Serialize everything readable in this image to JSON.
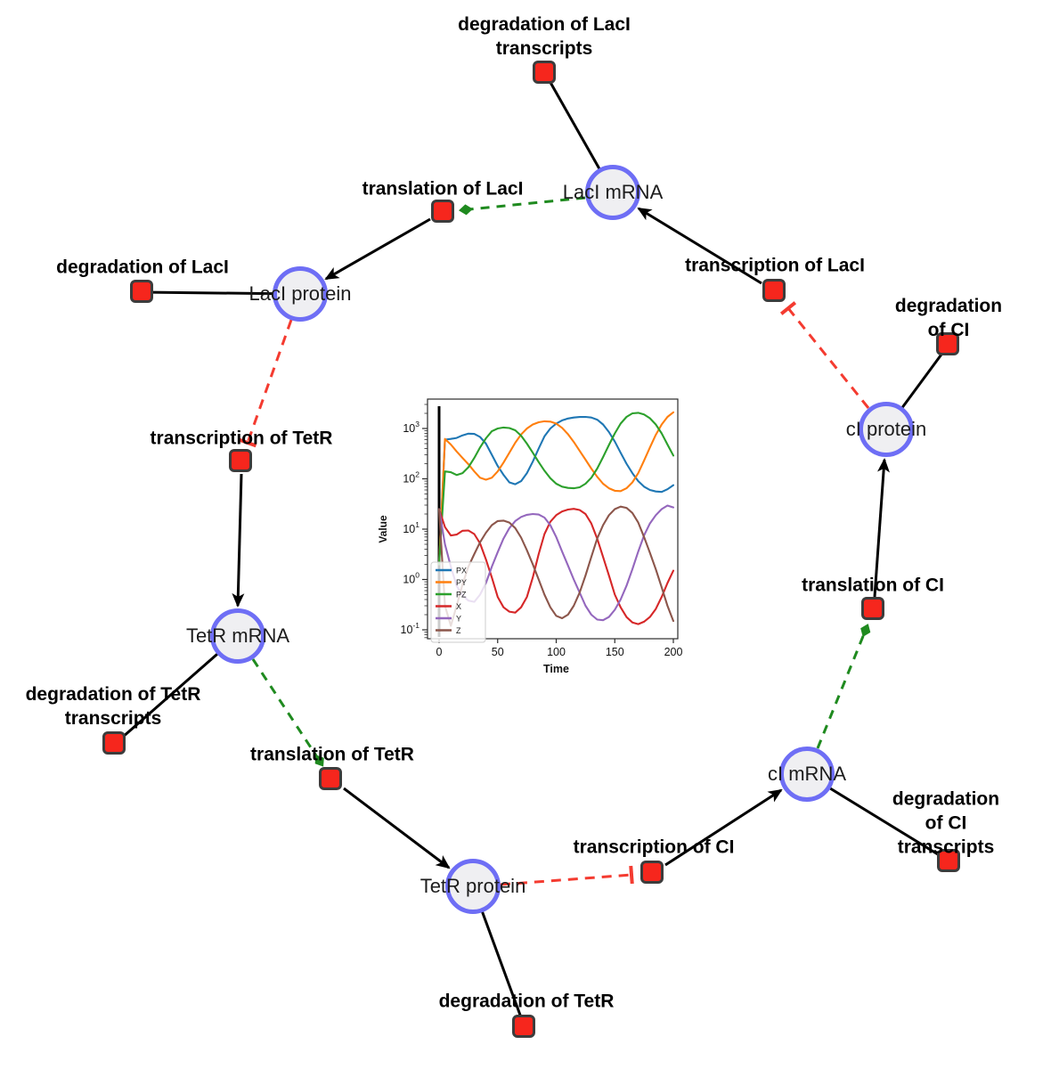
{
  "diagram": {
    "nodes": {
      "laci_mrna": "LacI mRNA",
      "laci_protein": "LacI protein",
      "tetr_mrna": "TetR mRNA",
      "tetr_protein": "TetR protein",
      "ci_mrna": "cI mRNA",
      "ci_protein": "cI protein"
    },
    "reactions": {
      "deg_laci_tx": "degradation of LacI\ntranscripts",
      "transl_laci": "translation of LacI",
      "deg_laci": "degradation of LacI",
      "txn_laci": "transcription of LacI",
      "deg_ci": "degradation of CI",
      "txn_tetr": "transcription of TetR",
      "deg_tetr_tx": "degradation of TetR\ntranscripts",
      "transl_tetr": "translation of TetR",
      "transl_ci": "translation of CI",
      "deg_tetr": "degradation of TetR",
      "txn_ci": "transcription of CI",
      "deg_ci_tx": "degradation of CI\ntranscripts"
    },
    "colors": {
      "species_fill": "#efeff2",
      "species_border": "#6e6ef5",
      "reaction_fill": "#f6261d",
      "reaction_border": "#3c3c3c",
      "edge_black": "#000000",
      "edge_modifier_green": "#1f8a1f",
      "edge_inhibition_red": "#f43b30"
    },
    "edge_kinds": {
      "black_solid": "production/consumption arrow",
      "green_dashed": "modifier (translation catalysis)",
      "red_dashed_tbar": "inhibition"
    }
  },
  "chart_data": {
    "type": "line",
    "title": "",
    "xlabel": "Time",
    "ylabel": "Value",
    "y_scale": "log",
    "xlim": [
      0,
      200
    ],
    "ylim_log10": [
      -1.18,
      3.58
    ],
    "x_ticks": [
      0,
      50,
      100,
      150,
      200
    ],
    "y_tick_exponents": [
      -1,
      0,
      1,
      2,
      3
    ],
    "grid": false,
    "legend_position": "lower left",
    "annotations": [
      {
        "type": "vline",
        "x": 0,
        "color": "#000000"
      }
    ],
    "x": [
      0,
      5,
      10,
      15,
      20,
      25,
      30,
      35,
      40,
      45,
      50,
      55,
      60,
      65,
      70,
      75,
      80,
      85,
      90,
      95,
      100,
      105,
      110,
      115,
      120,
      125,
      130,
      135,
      140,
      145,
      150,
      155,
      160,
      165,
      170,
      175,
      180,
      185,
      190,
      195,
      200
    ],
    "series": [
      {
        "name": "PX",
        "color": "#1f77b4",
        "values": [
          2,
          600,
          620,
          650,
          730,
          790,
          780,
          680,
          500,
          300,
          180,
          120,
          85,
          78,
          90,
          130,
          220,
          400,
          700,
          1000,
          1250,
          1450,
          1580,
          1650,
          1690,
          1700,
          1650,
          1500,
          1200,
          850,
          550,
          330,
          200,
          130,
          90,
          70,
          60,
          56,
          55,
          62,
          75
        ]
      },
      {
        "name": "PY",
        "color": "#ff7f0e",
        "values": [
          2,
          620,
          480,
          350,
          260,
          195,
          140,
          105,
          96,
          105,
          140,
          210,
          330,
          520,
          760,
          1000,
          1200,
          1330,
          1390,
          1370,
          1250,
          1030,
          770,
          540,
          360,
          240,
          160,
          110,
          80,
          65,
          58,
          57,
          65,
          85,
          130,
          230,
          420,
          750,
          1200,
          1700,
          2100
        ]
      },
      {
        "name": "PZ",
        "color": "#2ca02c",
        "values": [
          2,
          140,
          135,
          119,
          130,
          170,
          260,
          420,
          640,
          880,
          1000,
          1045,
          1020,
          920,
          720,
          500,
          330,
          215,
          145,
          103,
          80,
          70,
          66,
          65,
          68,
          80,
          105,
          160,
          270,
          470,
          800,
          1250,
          1700,
          2000,
          2050,
          1900,
          1600,
          1200,
          800,
          480,
          290
        ]
      },
      {
        "name": "X",
        "color": "#d62728",
        "values": [
          25,
          11,
          7.5,
          7.8,
          9.3,
          9.4,
          8,
          5.2,
          2.5,
          1.1,
          0.45,
          0.28,
          0.23,
          0.22,
          0.28,
          0.45,
          1.1,
          3.2,
          8,
          14,
          19,
          22.5,
          24.5,
          25.3,
          24,
          20,
          13,
          6.5,
          2.8,
          1.2,
          0.5,
          0.28,
          0.18,
          0.14,
          0.13,
          0.145,
          0.18,
          0.26,
          0.45,
          0.85,
          1.5
        ]
      },
      {
        "name": "Y",
        "color": "#9467bd",
        "values": [
          25,
          5,
          1.8,
          0.75,
          0.48,
          0.38,
          0.36,
          0.5,
          0.85,
          1.8,
          3.5,
          6.5,
          10.5,
          14.5,
          17.5,
          19.3,
          20,
          19.5,
          17,
          12,
          7,
          3.6,
          1.9,
          1,
          0.55,
          0.3,
          0.2,
          0.16,
          0.155,
          0.18,
          0.25,
          0.4,
          0.75,
          1.6,
          3.6,
          7.5,
          13,
          19,
          25,
          29.5,
          27
        ]
      },
      {
        "name": "Z",
        "color": "#8c564b",
        "values": [
          25,
          0.3,
          0.12,
          0.3,
          0.8,
          1.8,
          3.2,
          5.5,
          8.5,
          12,
          14.5,
          14.8,
          13.5,
          10.5,
          6.8,
          3.8,
          2,
          1,
          0.5,
          0.28,
          0.19,
          0.17,
          0.2,
          0.3,
          0.55,
          1.2,
          2.8,
          6.5,
          12,
          19,
          25,
          28,
          26.5,
          21,
          13.5,
          7,
          3.4,
          1.6,
          0.7,
          0.3,
          0.15
        ]
      }
    ]
  }
}
